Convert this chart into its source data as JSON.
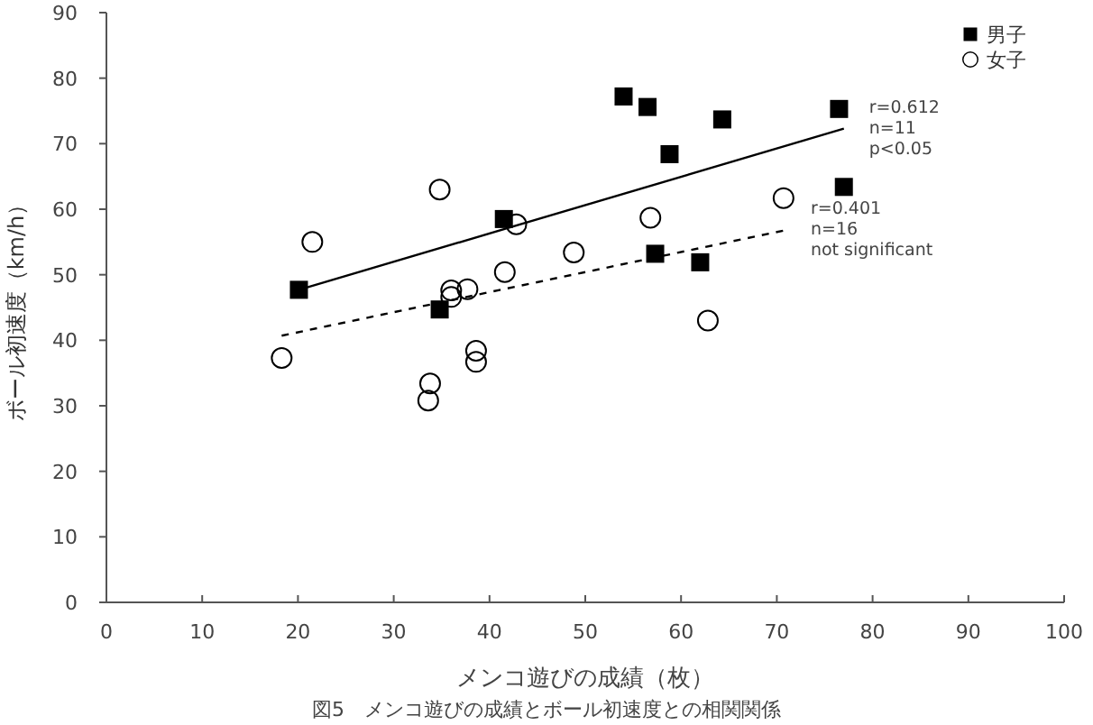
{
  "chart_data": {
    "type": "scatter",
    "xlabel": "メンコ遊びの成績（枚）",
    "ylabel": "ボール初速度（km/h）",
    "xlim": [
      0,
      100
    ],
    "xticks": [
      0,
      10,
      20,
      30,
      40,
      50,
      60,
      70,
      80,
      90,
      100
    ],
    "ylim": [
      0,
      90
    ],
    "yticks": [
      0,
      10,
      20,
      30,
      40,
      50,
      60,
      70,
      80,
      90
    ],
    "grid": false,
    "legend": "top right",
    "series": [
      {
        "name": "男子",
        "color": "#000000",
        "marker": "square",
        "x": [
          20.1,
          34.8,
          41.5,
          54.0,
          56.5,
          64.3,
          58.8,
          57.3,
          62.0,
          76.5,
          77.0
        ],
        "values": [
          47.7,
          44.7,
          58.5,
          77.2,
          75.6,
          73.7,
          68.4,
          53.2,
          51.9,
          75.3,
          63.4
        ]
      },
      {
        "name": "女子",
        "color": "#000000",
        "marker": "circle",
        "x": [
          18.3,
          21.5,
          34.8,
          33.8,
          33.6,
          36.0,
          36.0,
          37.7,
          38.6,
          38.6,
          42.8,
          41.6,
          48.8,
          56.8,
          62.8,
          70.7
        ],
        "values": [
          37.3,
          55.0,
          63.0,
          33.4,
          30.8,
          47.6,
          46.6,
          47.8,
          38.4,
          36.7,
          57.7,
          50.4,
          53.4,
          58.7,
          43.0,
          61.7
        ]
      },
      {
        "type": "line",
        "color": "#000000",
        "line_style": "solid",
        "x": [
          20.1,
          77.0
        ],
        "values": [
          47.7,
          72.3
        ]
      },
      {
        "type": "line",
        "color": "#000000",
        "line_style": "dashed",
        "x": [
          18.3,
          70.9
        ],
        "values": [
          40.7,
          56.8
        ]
      }
    ],
    "annotations": [
      {
        "text": "r=0.612\nn=11\np<0.05",
        "x": 77.0,
        "y": 72.3
      },
      {
        "text": "r=0.401\nn=16\nnot significant",
        "x": 70.9,
        "y": 56.8
      },
      "図5　メンコ遊びの成績とボール初速度との相関関係"
    ]
  }
}
